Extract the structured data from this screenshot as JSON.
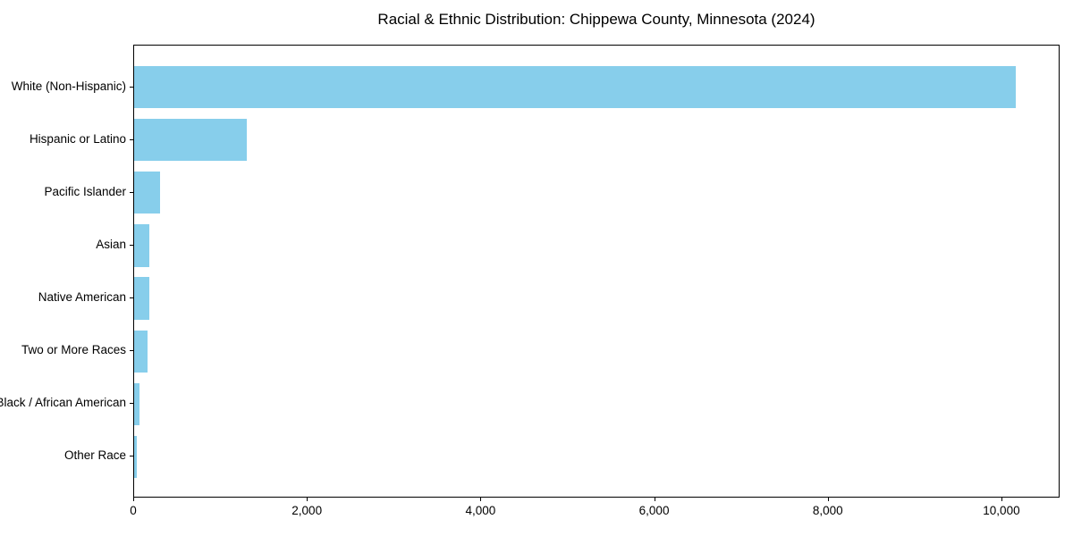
{
  "chart_data": {
    "type": "bar",
    "orientation": "horizontal",
    "title": "Racial & Ethnic Distribution: Chippewa County, Minnesota (2024)",
    "categories": [
      "White (Non-Hispanic)",
      "Hispanic or Latino",
      "Pacific Islander",
      "Asian",
      "Native American",
      "Two or More Races",
      "Black / African American",
      "Other Race"
    ],
    "values": [
      10160,
      1300,
      300,
      175,
      170,
      150,
      65,
      35
    ],
    "bar_color": "#87CEEB",
    "xlabel": "",
    "ylabel": "",
    "xlim": [
      0,
      10670
    ],
    "x_ticks": [
      0,
      2000,
      4000,
      6000,
      8000,
      10000
    ],
    "x_tick_labels": [
      "0",
      "2,000",
      "4,000",
      "6,000",
      "8,000",
      "10,000"
    ],
    "grid": false,
    "legend": "none",
    "background_color": "#ffffff",
    "text_color": "#000000"
  }
}
